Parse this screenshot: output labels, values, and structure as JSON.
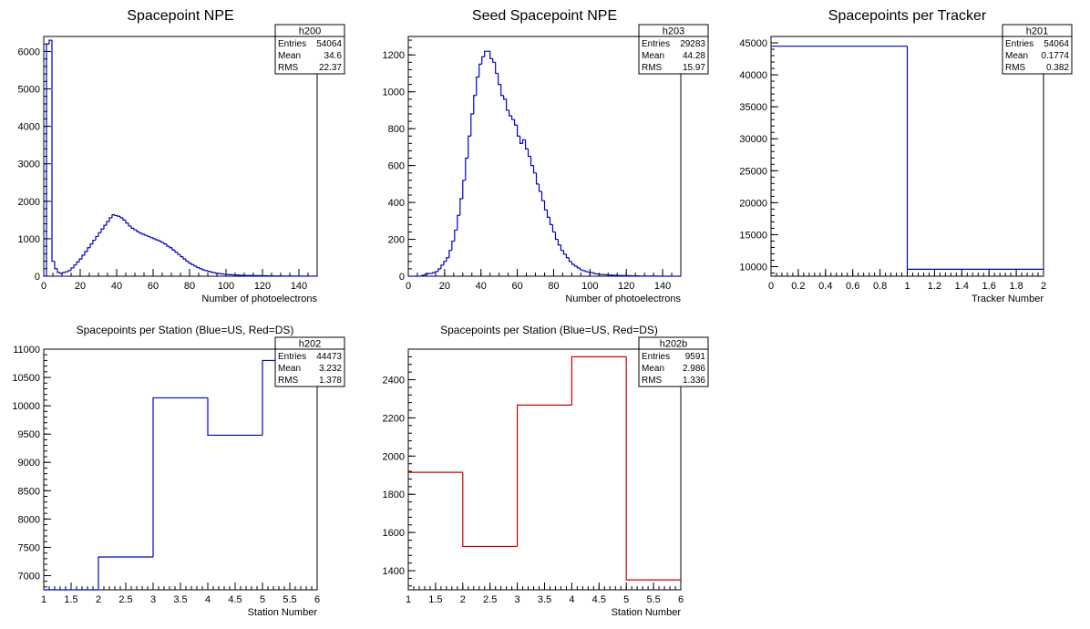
{
  "chart_data": [
    {
      "id": "h200",
      "type": "bar",
      "title": "Spacepoint NPE",
      "xlabel": "Number of photoelectrons",
      "ylabel": "",
      "xlim": [
        0,
        150
      ],
      "ylim": [
        0,
        6400
      ],
      "xticks": [
        0,
        20,
        40,
        60,
        80,
        100,
        120,
        140
      ],
      "yticks": [
        0,
        1000,
        2000,
        3000,
        4000,
        5000,
        6000
      ],
      "color": "#0000cc",
      "bin_edges_start": 0,
      "bin_width": 1.5,
      "values": [
        0,
        6200,
        6300,
        400,
        200,
        100,
        80,
        100,
        120,
        150,
        220,
        300,
        380,
        460,
        560,
        660,
        760,
        860,
        960,
        1060,
        1160,
        1260,
        1360,
        1460,
        1560,
        1640,
        1620,
        1600,
        1560,
        1500,
        1420,
        1340,
        1280,
        1240,
        1190,
        1150,
        1120,
        1090,
        1060,
        1030,
        1000,
        970,
        940,
        900,
        860,
        800,
        760,
        700,
        640,
        580,
        520,
        460,
        400,
        350,
        310,
        270,
        230,
        200,
        170,
        150,
        130,
        110,
        95,
        80,
        70,
        60,
        50,
        45,
        40,
        35,
        30,
        28,
        25,
        22,
        20,
        20,
        18,
        16,
        15,
        14,
        12,
        12,
        10,
        10,
        8,
        8,
        6,
        6,
        5,
        5,
        5,
        4,
        4,
        4,
        3,
        3,
        3,
        2,
        2,
        2
      ],
      "stats": {
        "name": "h200",
        "rows": [
          [
            "Entries",
            "54064"
          ],
          [
            "Mean",
            "34.6"
          ],
          [
            "RMS",
            "22.37"
          ]
        ]
      }
    },
    {
      "id": "h203",
      "type": "bar",
      "title": "Seed Spacepoint NPE",
      "xlabel": "Number of photoelectrons",
      "ylabel": "",
      "xlim": [
        0,
        150
      ],
      "ylim": [
        0,
        1300
      ],
      "xticks": [
        0,
        20,
        40,
        60,
        80,
        100,
        120,
        140
      ],
      "yticks": [
        0,
        200,
        400,
        600,
        800,
        1000,
        1200
      ],
      "color": "#0000cc",
      "bin_edges_start": 0,
      "bin_width": 1.5,
      "values": [
        0,
        0,
        0,
        0,
        0,
        5,
        10,
        15,
        15,
        20,
        25,
        40,
        60,
        80,
        100,
        140,
        190,
        250,
        330,
        420,
        520,
        640,
        760,
        880,
        980,
        1080,
        1150,
        1190,
        1220,
        1220,
        1180,
        1160,
        1100,
        1040,
        980,
        960,
        900,
        870,
        850,
        820,
        760,
        720,
        740,
        690,
        650,
        600,
        560,
        500,
        460,
        410,
        360,
        320,
        280,
        240,
        200,
        170,
        140,
        120,
        100,
        80,
        65,
        55,
        45,
        35,
        30,
        25,
        22,
        20,
        15,
        12,
        10,
        9,
        8,
        7,
        6,
        5,
        5,
        4,
        4,
        3,
        3,
        3,
        2,
        2,
        2,
        1,
        1,
        1,
        1,
        1,
        1,
        1,
        0,
        0,
        0,
        0,
        0,
        0,
        0,
        0
      ],
      "stats": {
        "name": "h203",
        "rows": [
          [
            "Entries",
            "29283"
          ],
          [
            "Mean",
            "44.28"
          ],
          [
            "RMS",
            "15.97"
          ]
        ]
      }
    },
    {
      "id": "h201",
      "type": "bar",
      "title": "Spacepoints per Tracker",
      "xlabel": "Tracker Number",
      "ylabel": "",
      "xlim": [
        0,
        2
      ],
      "ylim": [
        8500,
        46000
      ],
      "xticks": [
        0,
        0.2,
        0.4,
        0.6,
        0.8,
        1,
        1.2,
        1.4,
        1.6,
        1.8,
        2
      ],
      "yticks": [
        10000,
        15000,
        20000,
        25000,
        30000,
        35000,
        40000,
        45000
      ],
      "color": "#0000cc",
      "bin_edges_start": 0,
      "bin_width": 1,
      "values": [
        44473,
        9591
      ],
      "stats": {
        "name": "h201",
        "rows": [
          [
            "Entries",
            "54064"
          ],
          [
            "Mean",
            "0.1774"
          ],
          [
            "RMS",
            "0.382"
          ]
        ]
      }
    },
    {
      "id": "h202",
      "type": "bar",
      "title": "Spacepoints per Station (Blue=US, Red=DS)",
      "xlabel": "Station Number",
      "ylabel": "",
      "xlim": [
        1,
        6
      ],
      "ylim": [
        6750,
        11000
      ],
      "xticks": [
        1,
        1.5,
        2,
        2.5,
        3,
        3.5,
        4,
        4.5,
        5,
        5.5,
        6
      ],
      "yticks": [
        7000,
        7500,
        8000,
        8500,
        9000,
        9500,
        10000,
        10500,
        11000
      ],
      "color": "#0000cc",
      "bin_edges_start": 1,
      "bin_width": 1,
      "values": [
        6720,
        7330,
        10140,
        9480,
        10800
      ],
      "stats": {
        "name": "h202",
        "rows": [
          [
            "Entries",
            "44473"
          ],
          [
            "Mean",
            "3.232"
          ],
          [
            "RMS",
            "1.378"
          ]
        ]
      }
    },
    {
      "id": "h202b",
      "type": "bar",
      "title": "Spacepoints per Station (Blue=US, Red=DS)",
      "xlabel": "Station Number",
      "ylabel": "",
      "xlim": [
        1,
        6
      ],
      "ylim": [
        1300,
        2560
      ],
      "xticks": [
        1,
        1.5,
        2,
        2.5,
        3,
        3.5,
        4,
        4.5,
        5,
        5.5,
        6
      ],
      "yticks": [
        1400,
        1600,
        1800,
        2000,
        2200,
        2400
      ],
      "color": "#cc0000",
      "bin_edges_start": 1,
      "bin_width": 1,
      "values": [
        1915,
        1527,
        2267,
        2520,
        1352
      ],
      "stats": {
        "name": "h202b",
        "rows": [
          [
            "Entries",
            "9591"
          ],
          [
            "Mean",
            "2.986"
          ],
          [
            "RMS",
            "1.336"
          ]
        ]
      }
    }
  ]
}
